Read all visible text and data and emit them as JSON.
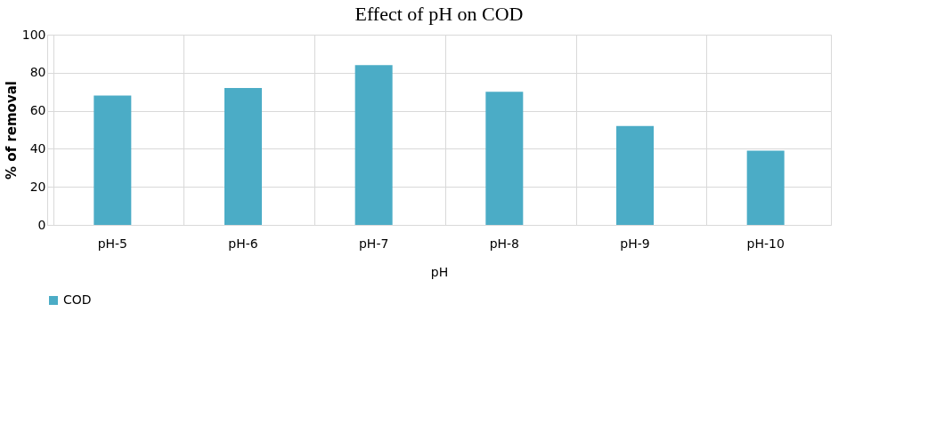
{
  "chart_data": {
    "type": "bar",
    "title": "Effect of pH on COD",
    "xlabel": "pH",
    "ylabel": "% of removal",
    "categories": [
      "pH-5",
      "pH-6",
      "pH-7",
      "pH-8",
      "pH-9",
      "pH-10"
    ],
    "series": [
      {
        "name": "COD",
        "color": "#4bacc6",
        "values": [
          68,
          72,
          84,
          70,
          52,
          39
        ]
      }
    ],
    "ylim": [
      0,
      100
    ],
    "yticks": [
      0,
      20,
      40,
      60,
      80,
      100
    ],
    "grid": true,
    "legend": "bottom"
  }
}
